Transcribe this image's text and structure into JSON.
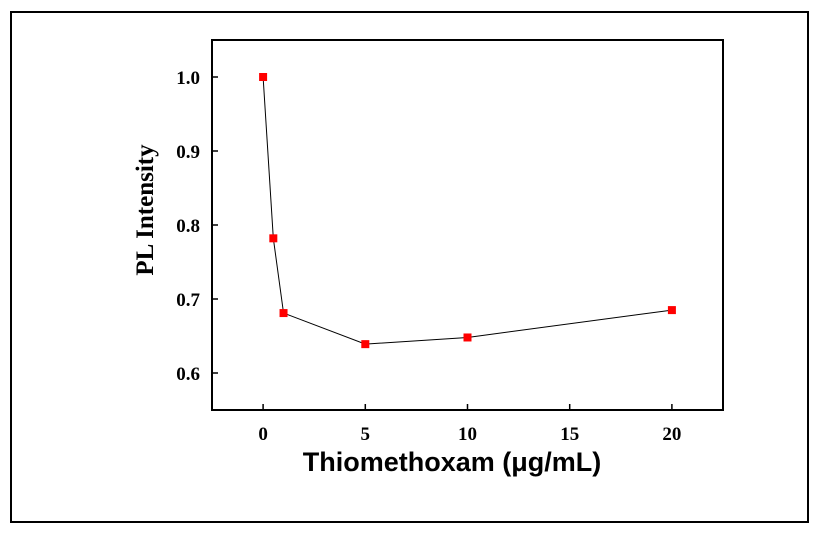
{
  "chart_data": {
    "type": "line",
    "title": "",
    "xlabel": "Thiomethoxam (μg/mL)",
    "ylabel": "PL Intensity",
    "xlim": [
      -2.5,
      22.5
    ],
    "ylim": [
      0.55,
      1.05
    ],
    "xticks": [
      0,
      5,
      10,
      15,
      20
    ],
    "yticks": [
      0.6,
      0.7,
      0.8,
      0.9,
      1.0
    ],
    "xtick_labels": [
      "0",
      "5",
      "10",
      "15",
      "20"
    ],
    "ytick_labels": [
      "0.6",
      "0.7",
      "0.8",
      "0.9",
      "1.0"
    ],
    "grid": false,
    "legend": "none",
    "series": [
      {
        "x": [
          0,
          0.5,
          1,
          5,
          10,
          20
        ],
        "y": [
          1.0,
          0.782,
          0.681,
          0.639,
          0.648,
          0.685
        ],
        "marker": "square",
        "marker_color": "#ff0000",
        "line_color": "#000000"
      }
    ]
  }
}
